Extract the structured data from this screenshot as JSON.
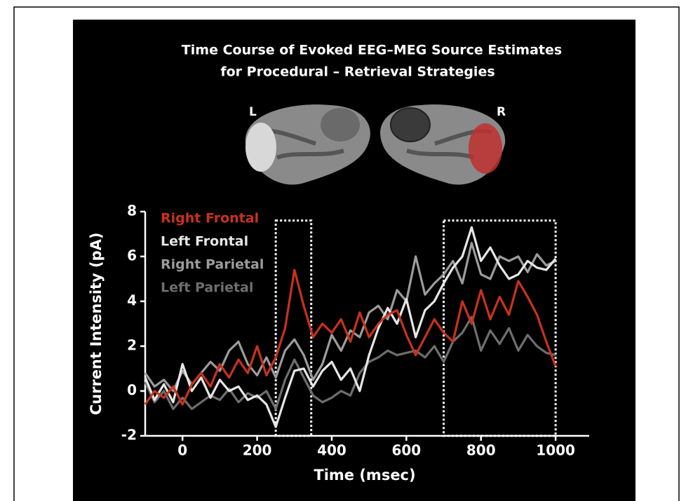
{
  "chart_data": {
    "type": "line",
    "title_lines": [
      "Time Course of Evoked EEG–MEG Source Estimates",
      "for Procedural – Retrieval Strategies"
    ],
    "hemisphere_labels": [
      "L",
      "R"
    ],
    "xlabel": "Time (msec)",
    "ylabel": "Current Intensity (pA)",
    "xlim": [
      -100,
      1090
    ],
    "ylim": [
      -2,
      8
    ],
    "xticks": [
      0,
      200,
      400,
      600,
      800,
      1000
    ],
    "yticks": [
      -2,
      0,
      2,
      4,
      6,
      8
    ],
    "highlight_regions": [
      {
        "x": [
          250,
          345
        ],
        "y": [
          -2,
          7.6
        ]
      },
      {
        "x": [
          700,
          1000
        ],
        "y": [
          -2,
          7.6
        ]
      }
    ],
    "legend": "upper left",
    "x": [
      -100,
      -75,
      -50,
      -25,
      0,
      25,
      50,
      75,
      100,
      125,
      150,
      175,
      200,
      225,
      250,
      275,
      300,
      325,
      350,
      375,
      400,
      425,
      450,
      475,
      500,
      525,
      550,
      575,
      600,
      625,
      650,
      675,
      700,
      725,
      750,
      775,
      800,
      825,
      850,
      875,
      900,
      925,
      950,
      975,
      1000
    ],
    "series": [
      {
        "name": "Right Frontal",
        "color": "#c8321c",
        "values": [
          -0.6,
          0,
          -0.3,
          0.2,
          -0.6,
          0.3,
          0.8,
          0.2,
          1.2,
          0.6,
          1.4,
          0.8,
          2.0,
          0.7,
          1.5,
          2.8,
          5.4,
          3.8,
          2.4,
          3.0,
          2.6,
          3.2,
          2.2,
          3.5,
          2.4,
          3.0,
          3.4,
          3.6,
          2.5,
          1.6,
          2.4,
          3.2,
          2.6,
          2.2,
          4.0,
          3.0,
          4.5,
          3.2,
          4.2,
          3.4,
          4.9,
          4.2,
          3.4,
          2.2,
          1.1
        ]
      },
      {
        "name": "Left Frontal",
        "color": "#e6e6e6",
        "values": [
          0.6,
          -0.4,
          0.3,
          -0.5,
          1.2,
          0.0,
          0.6,
          -0.3,
          0.5,
          0.0,
          0.2,
          -0.4,
          -0.2,
          -0.6,
          -1.6,
          -0.3,
          0.9,
          1.0,
          0.2,
          0.9,
          1.3,
          0.5,
          1.0,
          0.0,
          1.6,
          2.8,
          3.7,
          3.0,
          4.1,
          2.4,
          3.6,
          4.0,
          4.8,
          5.5,
          6.0,
          7.3,
          5.8,
          6.4,
          5.6,
          5.0,
          5.2,
          5.8,
          5.5,
          5.4,
          5.9
        ]
      },
      {
        "name": "Right Parietal",
        "color": "#9c9c9c",
        "values": [
          0.8,
          0.2,
          0.5,
          0.0,
          0.9,
          0.3,
          0.8,
          1.3,
          0.9,
          1.8,
          2.2,
          1.2,
          0.7,
          1.5,
          0.6,
          1.8,
          2.3,
          1.6,
          0.5,
          1.2,
          2.5,
          1.8,
          2.7,
          2.4,
          3.5,
          3.8,
          3.2,
          4.5,
          4.0,
          6.0,
          4.3,
          4.8,
          5.2,
          5.8,
          4.8,
          6.6,
          5.2,
          5.0,
          6.0,
          5.8,
          6.0,
          5.3,
          6.1,
          5.6,
          5.8
        ]
      },
      {
        "name": "Left Parietal",
        "color": "#6e6e6e",
        "values": [
          0.4,
          -0.5,
          0.0,
          -0.8,
          -0.3,
          -0.8,
          -0.5,
          -0.2,
          -0.4,
          0.1,
          -0.5,
          -0.1,
          -0.3,
          0.0,
          -0.8,
          0.5,
          1.4,
          0.6,
          -0.2,
          -0.5,
          -0.3,
          0.0,
          -0.2,
          0.8,
          1.3,
          1.5,
          1.8,
          1.6,
          1.7,
          1.8,
          1.5,
          2.0,
          1.3,
          2.2,
          2.6,
          3.3,
          1.8,
          2.7,
          2.1,
          2.8,
          1.8,
          2.5,
          2.0,
          1.7,
          1.6
        ]
      }
    ]
  }
}
